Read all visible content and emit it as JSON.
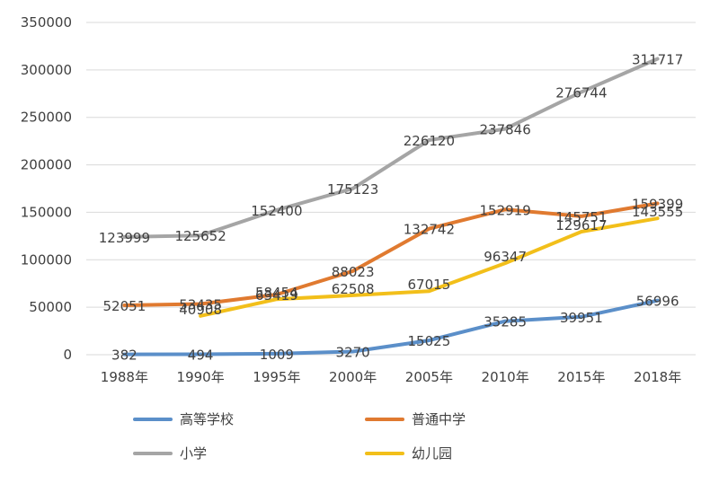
{
  "chart_data": {
    "type": "line",
    "categories": [
      "1988年",
      "1990年",
      "1995年",
      "2000年",
      "2005年",
      "2010年",
      "2015年",
      "2018年"
    ],
    "ylim": [
      0,
      350000
    ],
    "yticks": [
      "0",
      "50000",
      "100000",
      "150000",
      "200000",
      "250000",
      "300000",
      "350000"
    ],
    "grid": true,
    "legend": "bottom",
    "series": [
      {
        "name": "高等学校",
        "color": "#5b8fc9",
        "values": [
          382,
          494,
          1009,
          3270,
          15025,
          35285,
          39951,
          56996
        ],
        "labels": [
          "382",
          "494",
          "1009",
          "3270",
          "15025",
          "35285",
          "39951",
          "56996"
        ]
      },
      {
        "name": "普通中学",
        "color": "#e07a30",
        "values": [
          52051,
          53435,
          63419,
          88023,
          132742,
          152919,
          145751,
          159399
        ],
        "labels": [
          "52051",
          "53435",
          "63419",
          "88023",
          "132742",
          "152919",
          "145751",
          "159399"
        ]
      },
      {
        "name": "小学",
        "color": "#a5a5a5",
        "values": [
          123999,
          125652,
          152400,
          175123,
          226120,
          237846,
          276744,
          311717
        ],
        "labels": [
          "123999",
          "125652",
          "152400",
          "175123",
          "226120",
          "237846",
          "276744",
          "311717"
        ]
      },
      {
        "name": "幼儿园",
        "color": "#f2bf1a",
        "values": [
          null,
          40908,
          58454,
          62508,
          67015,
          96347,
          129617,
          143555
        ],
        "labels": [
          null,
          "40908",
          "58454",
          "62508",
          "67015",
          "96347",
          "129617",
          "143555"
        ]
      }
    ]
  }
}
